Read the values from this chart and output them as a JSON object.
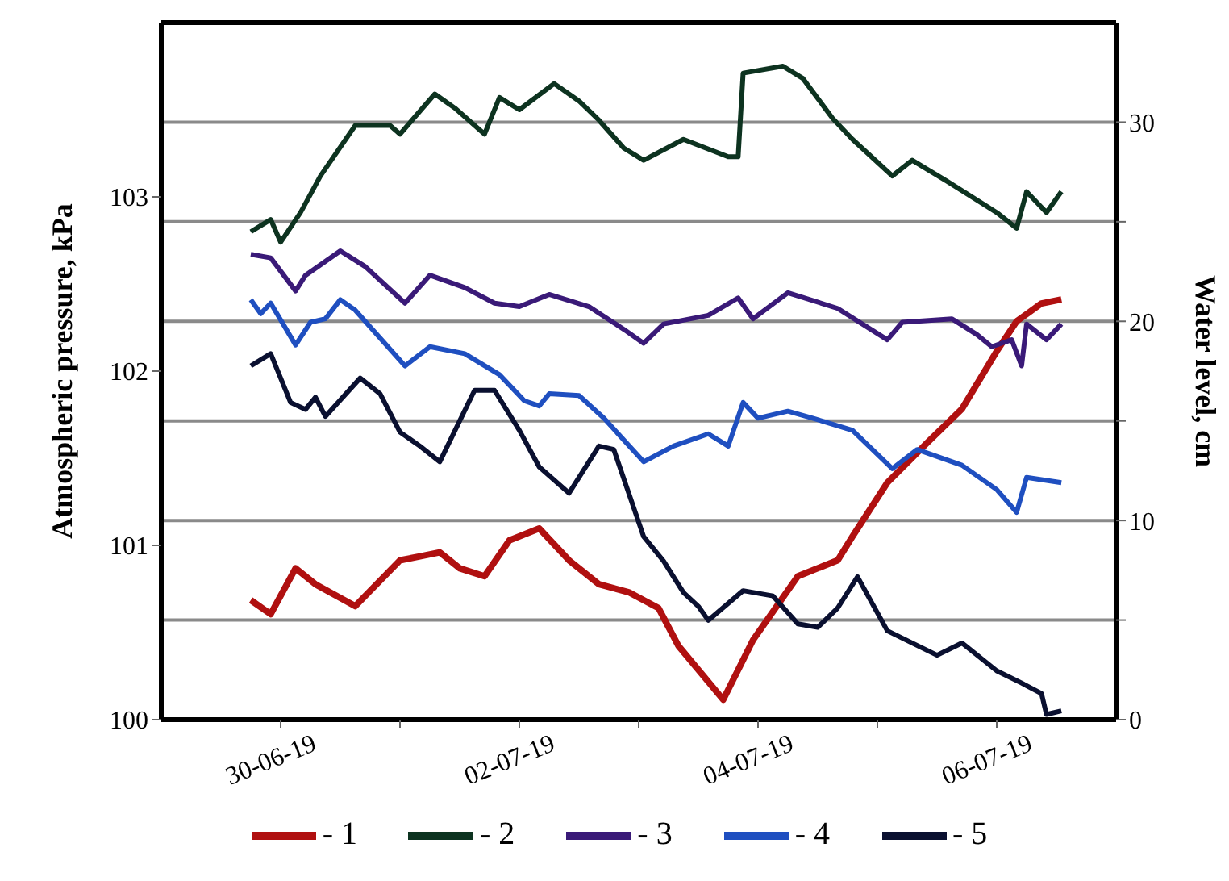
{
  "chart_data": {
    "type": "line",
    "ylabel": "Atmospheric pressure, kPa",
    "y2label": "Water level, cm",
    "xlim": [
      "--06-29",
      "--07-07"
    ],
    "xticks": [
      {
        "value": "--06-30",
        "label": "30-06-19"
      },
      {
        "value": "--07-01",
        "label": null
      },
      {
        "value": "--07-02",
        "label": "02-07-19"
      },
      {
        "value": "--07-03",
        "label": null
      },
      {
        "value": "--07-04",
        "label": "04-07-19"
      },
      {
        "value": "--07-05",
        "label": null
      },
      {
        "value": "--07-06",
        "label": "06-07-19"
      }
    ],
    "ylim": [
      100,
      104
    ],
    "yticks": [
      100,
      101,
      102,
      103
    ],
    "y2lim": [
      0,
      35
    ],
    "y2ticks": [
      0,
      {
        "value": 5,
        "label": null
      },
      10,
      {
        "value": 15,
        "label": null
      },
      20,
      {
        "value": 25,
        "label": null
      },
      30
    ],
    "grid": "y2",
    "legend": "bottom",
    "marker": "none",
    "line_style": "solid",
    "series": [
      {
        "name": "- 1",
        "color": "#b01010",
        "axis": "y2",
        "x": [
          "--06-29T18:00",
          "--06-29T22:00",
          "--06-30T03:00",
          "--06-30T07:00",
          "--06-30T15:00",
          "--07-01T00:00",
          "--07-01T04:00",
          "--07-01T08:00",
          "--07-01T12:00",
          "--07-01T17:00",
          "--07-01T22:00",
          "--07-02T04:00",
          "--07-02T10:00",
          "--07-02T16:00",
          "--07-02T22:00",
          "--07-03T04:00",
          "--07-03T08:00",
          "--07-03T17:00",
          "--07-03T23:00",
          "--07-04T08:00",
          "--07-04T16:00",
          "--07-04T19:00",
          "--07-05T02:00",
          "--07-05T10:00",
          "--07-05T17:00",
          "--07-06T00:00",
          "--07-06T04:00",
          "--07-06T09:00",
          "--07-06T13:00"
        ],
        "values": [
          6.0,
          5.3,
          7.6,
          6.8,
          5.7,
          8.0,
          8.2,
          8.4,
          7.6,
          7.2,
          9.0,
          9.6,
          8.0,
          6.8,
          6.4,
          5.6,
          3.7,
          1.0,
          4.0,
          7.2,
          8.0,
          9.2,
          11.9,
          13.9,
          15.6,
          18.5,
          20.0,
          20.9,
          21.1
        ]
      },
      {
        "name": "- 2",
        "color": "#0d3320",
        "axis": "y",
        "x": [
          "--06-29T18:00",
          "--06-29T22:00",
          "--06-30T00:00",
          "--06-30T04:00",
          "--06-30T08:00",
          "--06-30T15:00",
          "--06-30T22:00",
          "--07-01T00:00",
          "--07-01T07:00",
          "--07-01T11:00",
          "--07-01T17:00",
          "--07-01T20:00",
          "--07-02T00:00",
          "--07-02T07:00",
          "--07-02T12:00",
          "--07-02T16:00",
          "--07-02T21:00",
          "--07-03T01:00",
          "--07-03T09:00",
          "--07-03T18:00",
          "--07-03T20:00",
          "--07-03T21:00",
          "--07-04T05:00",
          "--07-04T09:00",
          "--07-04T15:00",
          "--07-04T19:00",
          "--07-05T03:00",
          "--07-05T07:00",
          "--07-05T14:00",
          "--07-06T00:00",
          "--07-06T04:00",
          "--07-06T06:00",
          "--07-06T10:00",
          "--07-06T13:00"
        ],
        "values": [
          102.8,
          102.87,
          102.74,
          102.91,
          103.12,
          103.41,
          103.41,
          103.36,
          103.59,
          103.51,
          103.36,
          103.57,
          103.5,
          103.65,
          103.55,
          103.44,
          103.28,
          103.21,
          103.33,
          103.23,
          103.23,
          103.71,
          103.75,
          103.68,
          103.45,
          103.33,
          103.12,
          103.21,
          103.09,
          102.91,
          102.82,
          103.03,
          102.91,
          103.03
        ]
      },
      {
        "name": "- 3",
        "color": "#3a1a78",
        "axis": "y",
        "x": [
          "--06-29T18:00",
          "--06-29T22:00",
          "--06-30T03:00",
          "--06-30T05:00",
          "--06-30T12:00",
          "--06-30T17:00",
          "--07-01T01:00",
          "--07-01T06:00",
          "--07-01T13:00",
          "--07-01T19:00",
          "--07-02T00:00",
          "--07-02T06:00",
          "--07-02T14:00",
          "--07-02T21:00",
          "--07-03T01:00",
          "--07-03T05:00",
          "--07-03T14:00",
          "--07-03T20:00",
          "--07-03T23:00",
          "--07-04T06:00",
          "--07-04T16:00",
          "--07-05T02:00",
          "--07-05T05:00",
          "--07-05T15:00",
          "--07-05T20:00",
          "--07-05T23:00",
          "--07-06T03:00",
          "--07-06T05:00",
          "--07-06T06:00",
          "--07-06T10:00",
          "--07-06T13:00"
        ],
        "values": [
          102.67,
          102.65,
          102.46,
          102.55,
          102.69,
          102.6,
          102.39,
          102.55,
          102.48,
          102.39,
          102.37,
          102.44,
          102.37,
          102.24,
          102.16,
          102.27,
          102.32,
          102.42,
          102.3,
          102.45,
          102.36,
          102.18,
          102.28,
          102.3,
          102.21,
          102.14,
          102.18,
          102.03,
          102.27,
          102.18,
          102.27
        ]
      },
      {
        "name": "- 4",
        "color": "#1f4fc0",
        "axis": "y",
        "x": [
          "--06-29T18:00",
          "--06-29T20:00",
          "--06-29T22:00",
          "--06-30T03:00",
          "--06-30T06:00",
          "--06-30T09:00",
          "--06-30T12:00",
          "--06-30T15:00",
          "--07-01T01:00",
          "--07-01T06:00",
          "--07-01T13:00",
          "--07-01T20:00",
          "--07-02T01:00",
          "--07-02T04:00",
          "--07-02T06:00",
          "--07-02T12:00",
          "--07-02T17:00",
          "--07-03T01:00",
          "--07-03T07:00",
          "--07-03T14:00",
          "--07-03T18:00",
          "--07-03T21:00",
          "--07-04T00:00",
          "--07-04T06:00",
          "--07-04T11:00",
          "--07-04T19:00",
          "--07-04T23:00",
          "--07-05T03:00",
          "--07-05T08:00",
          "--07-05T17:00",
          "--07-06T00:00",
          "--07-06T04:00",
          "--07-06T06:00",
          "--07-06T13:00"
        ],
        "values": [
          102.41,
          102.33,
          102.39,
          102.15,
          102.28,
          102.3,
          102.41,
          102.35,
          102.03,
          102.14,
          102.1,
          101.98,
          101.83,
          101.8,
          101.87,
          101.86,
          101.73,
          101.48,
          101.57,
          101.64,
          101.57,
          101.82,
          101.73,
          101.77,
          101.73,
          101.66,
          101.55,
          101.44,
          101.55,
          101.46,
          101.32,
          101.19,
          101.39,
          101.36
        ]
      },
      {
        "name": "- 5",
        "color": "#0a1030",
        "axis": "y",
        "x": [
          "--06-29T18:00",
          "--06-29T22:00",
          "--06-30T02:00",
          "--06-30T05:00",
          "--06-30T07:00",
          "--06-30T09:00",
          "--06-30T16:00",
          "--06-30T20:00",
          "--07-01T00:00",
          "--07-01T04:00",
          "--07-01T08:00",
          "--07-01T15:00",
          "--07-01T19:00",
          "--07-02T00:00",
          "--07-02T04:00",
          "--07-02T10:00",
          "--07-02T16:00",
          "--07-02T19:00",
          "--07-02T22:00",
          "--07-03T01:00",
          "--07-03T05:00",
          "--07-03T09:00",
          "--07-03T12:00",
          "--07-03T14:00",
          "--07-03T21:00",
          "--07-04T03:00",
          "--07-04T08:00",
          "--07-04T12:00",
          "--07-04T16:00",
          "--07-04T20:00",
          "--07-05T02:00",
          "--07-05T12:00",
          "--07-05T17:00",
          "--07-06T00:00",
          "--07-06T05:00",
          "--07-06T09:00",
          "--07-06T10:00",
          "--07-06T13:00"
        ],
        "values": [
          102.03,
          102.1,
          101.82,
          101.78,
          101.85,
          101.74,
          101.96,
          101.87,
          101.65,
          101.57,
          101.48,
          101.89,
          101.89,
          101.66,
          101.45,
          101.3,
          101.57,
          101.55,
          101.3,
          101.05,
          100.91,
          100.73,
          100.65,
          100.57,
          100.74,
          100.71,
          100.55,
          100.53,
          100.64,
          100.82,
          100.51,
          100.37,
          100.44,
          100.28,
          100.21,
          100.15,
          100.03,
          100.05
        ]
      }
    ]
  }
}
